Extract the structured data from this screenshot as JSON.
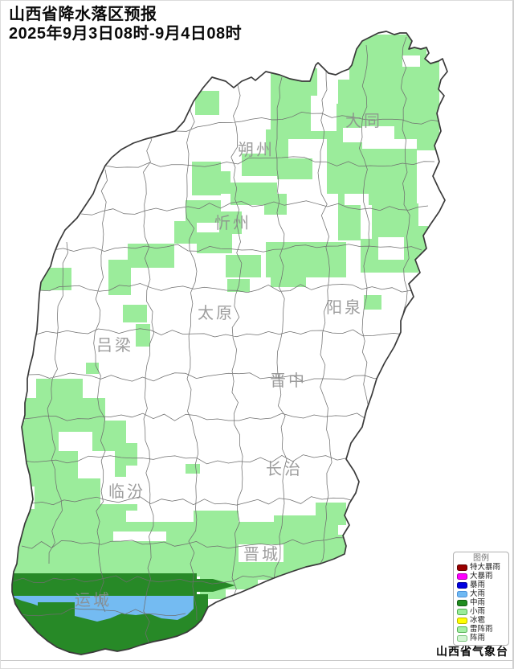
{
  "title": {
    "line1": "山西省降水落区预报",
    "line2": "2025年9月3日08时-9月4日08时"
  },
  "attribution": "山西省气象台",
  "map": {
    "cities": [
      {
        "label": "大同"
      },
      {
        "label": "朔州"
      },
      {
        "label": "忻州"
      },
      {
        "label": "太原"
      },
      {
        "label": "阳泉"
      },
      {
        "label": "吕梁"
      },
      {
        "label": "晋中"
      },
      {
        "label": "长治"
      },
      {
        "label": "临汾"
      },
      {
        "label": "晋城"
      },
      {
        "label": "运城"
      }
    ]
  },
  "legend": {
    "title": "图例",
    "items": [
      {
        "label": "特大暴雨",
        "color": "#990000",
        "border": "#5c0000"
      },
      {
        "label": "大暴雨",
        "color": "#ff00ff",
        "border": "#aa00aa"
      },
      {
        "label": "暴雨",
        "color": "#0000e1",
        "border": "#000099"
      },
      {
        "label": "大雨",
        "color": "#6fb9f2",
        "border": "#4a90d9"
      },
      {
        "label": "中雨",
        "color": "#1f8c1f",
        "border": "#145c14"
      },
      {
        "label": "小雨",
        "color": "#9bec9b",
        "border": "#4fae4f"
      },
      {
        "label": "冰雹",
        "color": "#ffff00",
        "border": "#b8b800"
      },
      {
        "label": "雷阵雨",
        "color": "#a4f0a4",
        "border": "#56b056"
      },
      {
        "label": "阵雨",
        "color": "#d3f5d3",
        "border": "#7cc47c"
      }
    ]
  },
  "map_colors": {
    "light_rain_fill": "#9bec9b",
    "moderate_rain_fill": "#278927",
    "heavy_rain_fill": "#74bbf2",
    "county_boundary": "#6e6e6e",
    "province_border": "#3a3a3a",
    "city_label": "#8c8c8c"
  }
}
